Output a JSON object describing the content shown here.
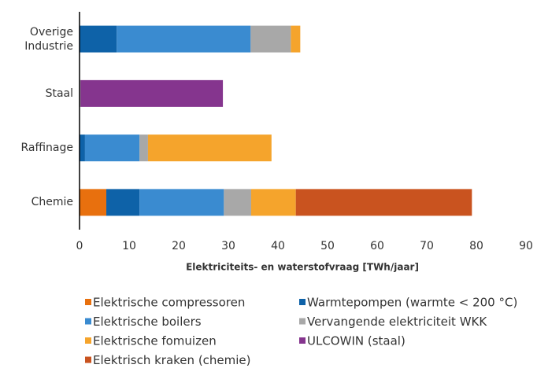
{
  "chart_data": {
    "type": "stacked_barh",
    "xlabel": "Elektriciteits- en waterstofvraag [TWh/jaar]",
    "categories": [
      "Overige Industrie",
      "Staal",
      "Raffinage",
      "Chemie"
    ],
    "series": [
      {
        "name": "Elektrische compressoren",
        "color": "#e8700e",
        "values": [
          0,
          0,
          0,
          5.4
        ]
      },
      {
        "name": "Warmtepompen (warmte < 200 °C)",
        "color": "#0e62a8",
        "values": [
          7.5,
          0,
          1.1,
          6.7
        ]
      },
      {
        "name": "Elektrische boilers",
        "color": "#3a8bd0",
        "values": [
          27,
          0,
          11,
          17
        ]
      },
      {
        "name": "Vervangende elektriciteit WKK",
        "color": "#a8a8a8",
        "values": [
          8.1,
          0.2,
          1.7,
          5.5
        ]
      },
      {
        "name": "Elektrische fomuizen",
        "color": "#f5a42c",
        "values": [
          1.9,
          0,
          24.9,
          9
        ]
      },
      {
        "name": "ULCOWIN (staal)",
        "color": "#85358e",
        "values": [
          0,
          28.7,
          0,
          0
        ]
      },
      {
        "name": "Elektrisch kraken (chemie)",
        "color": "#c9531f",
        "values": [
          0,
          0,
          0,
          35.5
        ]
      }
    ],
    "xlim": [
      0,
      90
    ],
    "xticks": [
      0,
      10,
      20,
      30,
      40,
      50,
      60,
      70,
      80,
      90
    ]
  }
}
